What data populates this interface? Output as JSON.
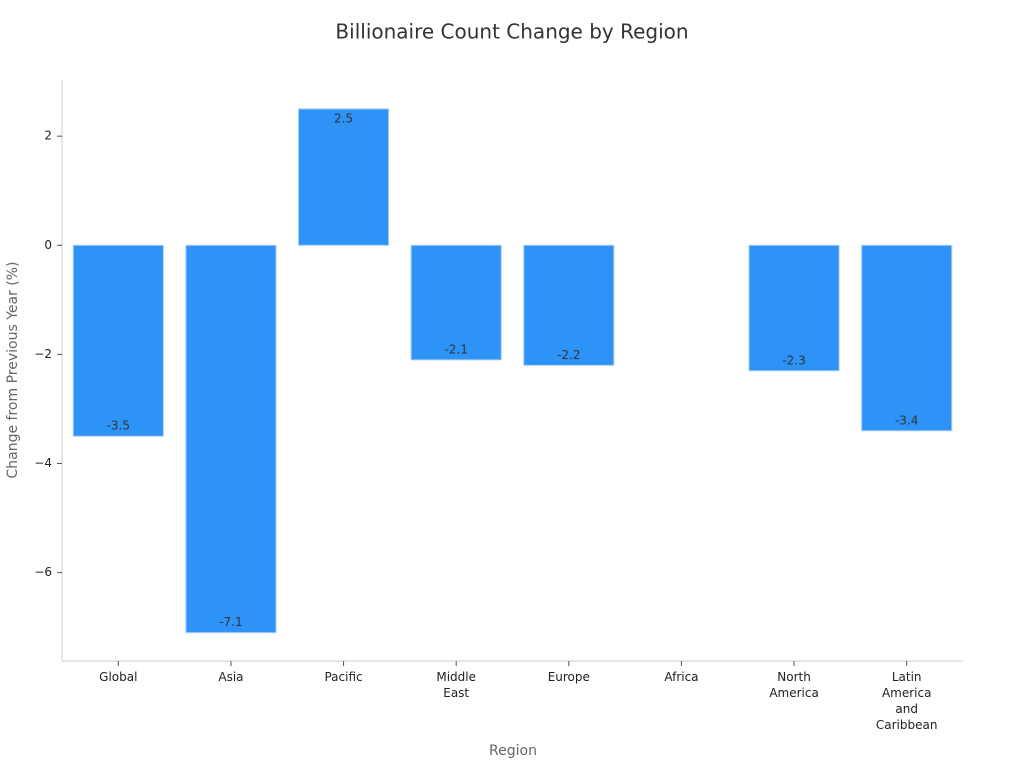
{
  "chart_data": {
    "type": "bar",
    "title": "Billionaire Count Change by Region",
    "x_label": "Region",
    "y_label": "Change from Previous Year (%)",
    "categories": [
      "Global",
      "Asia",
      "Pacific",
      "Middle East",
      "Europe",
      "Africa",
      "North America",
      "Latin America and Caribbean"
    ],
    "values": [
      -3.5,
      -7.1,
      2.5,
      -2.1,
      -2.2,
      null,
      -2.3,
      -3.4
    ],
    "color": "#2d93f7",
    "ylim": [
      -7.62,
      3.03
    ],
    "yticks": [
      {
        "value": -6,
        "label": "−6"
      },
      {
        "value": -4,
        "label": "−4"
      },
      {
        "value": -2,
        "label": "−2"
      },
      0,
      2
    ]
  }
}
